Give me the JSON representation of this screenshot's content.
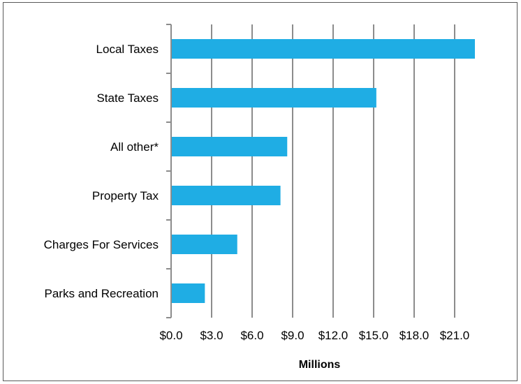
{
  "chart_data": {
    "type": "bar",
    "orientation": "horizontal",
    "categories": [
      "Local Taxes",
      "State Taxes",
      "All other*",
      "Property Tax",
      "Charges For Services",
      "Parks and Recreation"
    ],
    "values": [
      22.5,
      15.2,
      8.6,
      8.1,
      4.9,
      2.5
    ],
    "xlabel": "Millions",
    "ylabel": "",
    "xlim": [
      0,
      22.5
    ],
    "x_ticks": [
      0,
      3,
      6,
      9,
      12,
      15,
      18,
      21
    ],
    "x_tick_labels": [
      "$0.0",
      "$3.0",
      "$6.0",
      "$9.0",
      "$12.0",
      "$15.0",
      "$18.0",
      "$21.0"
    ],
    "grid": "vertical",
    "bar_color": "#1FADE4",
    "grid_color": "#8C8C8C",
    "legend": "none"
  }
}
